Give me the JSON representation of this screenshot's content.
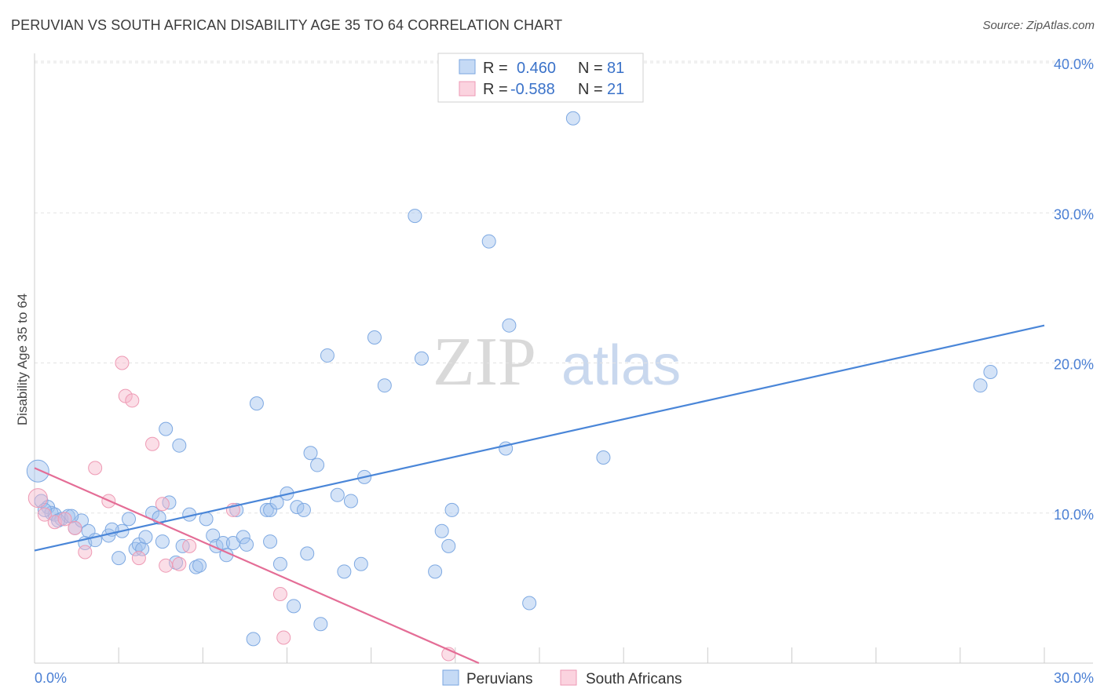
{
  "header": {
    "title": "PERUVIAN VS SOUTH AFRICAN DISABILITY AGE 35 TO 64 CORRELATION CHART",
    "source": "Source: ZipAtlas.com"
  },
  "watermark": {
    "part1": "ZIP",
    "part2": "atlas"
  },
  "legend": {
    "rows": [
      {
        "r_label": "R =",
        "r_value": "0.460",
        "n_label": "N =",
        "n_value": "81",
        "color": "#a9c7f0"
      },
      {
        "r_label": "R =",
        "r_value": "-0.588",
        "n_label": "N =",
        "n_value": "21",
        "color": "#f6b6c9"
      }
    ]
  },
  "bottom_legend": {
    "items": [
      {
        "label": "Peruvians",
        "color": "#a9c7f0"
      },
      {
        "label": "South Africans",
        "color": "#f6b6c9"
      }
    ]
  },
  "chart_data": {
    "type": "scatter",
    "title": "PERUVIAN VS SOUTH AFRICAN DISABILITY AGE 35 TO 64 CORRELATION CHART",
    "xlabel": "",
    "ylabel": "Disability Age 35 to 64",
    "xlim": [
      0,
      30
    ],
    "ylim": [
      0,
      40
    ],
    "x_tick_labels": [
      "0.0%",
      "30.0%"
    ],
    "y_ticks": [
      10,
      20,
      30,
      40
    ],
    "y_tick_labels": [
      "10.0%",
      "20.0%",
      "30.0%",
      "40.0%"
    ],
    "grid": true,
    "colors": {
      "peruvians": "#4a86d8",
      "south_africans": "#e46d96"
    },
    "series": [
      {
        "name": "Peruvians",
        "points": [
          [
            0.1,
            12.8
          ],
          [
            0.2,
            10.8
          ],
          [
            0.4,
            10.4
          ],
          [
            0.5,
            10.0
          ],
          [
            0.6,
            9.9
          ],
          [
            0.8,
            9.6
          ],
          [
            1.0,
            9.8
          ],
          [
            1.2,
            9.0
          ],
          [
            1.4,
            9.5
          ],
          [
            1.5,
            8.0
          ],
          [
            1.6,
            8.8
          ],
          [
            1.8,
            8.2
          ],
          [
            2.2,
            8.5
          ],
          [
            2.5,
            7.0
          ],
          [
            2.6,
            8.8
          ],
          [
            2.8,
            9.6
          ],
          [
            3.0,
            7.6
          ],
          [
            3.1,
            7.9
          ],
          [
            3.2,
            7.6
          ],
          [
            3.3,
            8.4
          ],
          [
            3.5,
            10.0
          ],
          [
            3.7,
            9.7
          ],
          [
            3.8,
            8.1
          ],
          [
            3.9,
            15.6
          ],
          [
            4.0,
            10.7
          ],
          [
            4.2,
            6.7
          ],
          [
            4.3,
            14.5
          ],
          [
            4.4,
            7.8
          ],
          [
            4.6,
            9.9
          ],
          [
            4.8,
            6.4
          ],
          [
            4.9,
            6.5
          ],
          [
            5.1,
            9.6
          ],
          [
            5.3,
            8.5
          ],
          [
            5.4,
            7.8
          ],
          [
            5.6,
            8.0
          ],
          [
            5.7,
            7.2
          ],
          [
            5.9,
            8.0
          ],
          [
            6.0,
            10.2
          ],
          [
            6.2,
            8.4
          ],
          [
            6.3,
            7.9
          ],
          [
            6.5,
            1.6
          ],
          [
            6.6,
            17.3
          ],
          [
            6.9,
            10.2
          ],
          [
            7.0,
            10.2
          ],
          [
            7.0,
            8.1
          ],
          [
            7.2,
            10.7
          ],
          [
            7.3,
            6.6
          ],
          [
            7.5,
            11.3
          ],
          [
            7.7,
            3.8
          ],
          [
            7.8,
            10.4
          ],
          [
            8.0,
            10.2
          ],
          [
            8.1,
            7.3
          ],
          [
            8.2,
            14.0
          ],
          [
            8.4,
            13.2
          ],
          [
            8.5,
            2.6
          ],
          [
            8.7,
            20.5
          ],
          [
            9.0,
            11.2
          ],
          [
            9.2,
            6.1
          ],
          [
            9.4,
            10.8
          ],
          [
            9.7,
            6.6
          ],
          [
            9.8,
            12.4
          ],
          [
            10.1,
            21.7
          ],
          [
            10.4,
            18.5
          ],
          [
            11.3,
            29.8
          ],
          [
            11.5,
            20.3
          ],
          [
            11.9,
            6.1
          ],
          [
            12.1,
            8.8
          ],
          [
            12.3,
            7.8
          ],
          [
            12.4,
            10.2
          ],
          [
            13.5,
            28.1
          ],
          [
            14.0,
            14.3
          ],
          [
            14.1,
            22.5
          ],
          [
            14.7,
            4.0
          ],
          [
            16.0,
            36.3
          ],
          [
            16.9,
            13.7
          ],
          [
            28.1,
            18.5
          ],
          [
            28.4,
            19.4
          ],
          [
            0.3,
            10.2
          ],
          [
            0.7,
            9.5
          ],
          [
            1.1,
            9.8
          ],
          [
            2.3,
            8.9
          ]
        ]
      },
      {
        "name": "South Africans",
        "points": [
          [
            0.1,
            11.0
          ],
          [
            0.3,
            9.9
          ],
          [
            0.6,
            9.4
          ],
          [
            0.9,
            9.6
          ],
          [
            1.2,
            9.0
          ],
          [
            1.5,
            7.4
          ],
          [
            1.8,
            13.0
          ],
          [
            2.2,
            10.8
          ],
          [
            2.6,
            20.0
          ],
          [
            2.7,
            17.8
          ],
          [
            2.9,
            17.5
          ],
          [
            3.1,
            7.0
          ],
          [
            3.5,
            14.6
          ],
          [
            3.8,
            10.6
          ],
          [
            3.9,
            6.5
          ],
          [
            4.3,
            6.6
          ],
          [
            4.6,
            7.8
          ],
          [
            5.9,
            10.2
          ],
          [
            7.3,
            4.6
          ],
          [
            7.4,
            1.7
          ],
          [
            12.3,
            0.6
          ]
        ]
      }
    ],
    "trend_lines": [
      {
        "series": "Peruvians",
        "x": [
          0,
          30
        ],
        "y": [
          7.5,
          22.5
        ]
      },
      {
        "series": "South Africans",
        "x": [
          0,
          13.2
        ],
        "y": [
          13.0,
          0.0
        ]
      }
    ]
  }
}
